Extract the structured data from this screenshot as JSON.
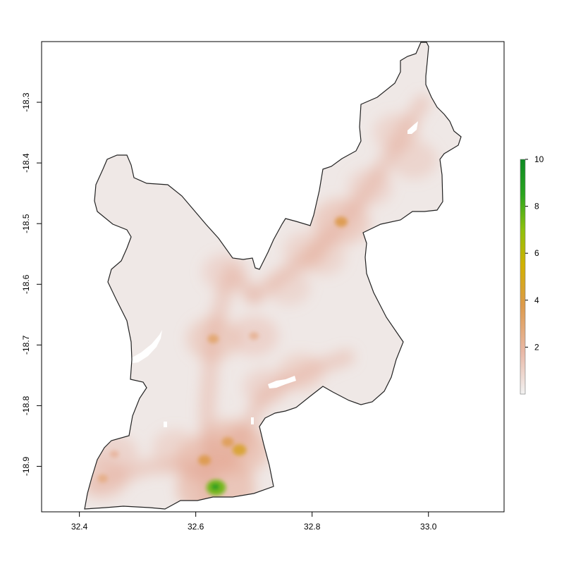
{
  "chart_data": {
    "type": "heatmap",
    "x_ticks": [
      "32.4",
      "32.6",
      "32.8",
      "33.0"
    ],
    "x_tick_values": [
      32.4,
      32.6,
      32.8,
      33.0
    ],
    "y_ticks": [
      "-18.3",
      "-18.4",
      "-18.5",
      "-18.6",
      "-18.7",
      "-18.8",
      "-18.9"
    ],
    "y_tick_values": [
      -18.3,
      -18.4,
      -18.5,
      -18.6,
      -18.7,
      -18.8,
      -18.9
    ],
    "xlim": [
      32.335,
      33.13
    ],
    "ylim": [
      -18.975,
      -18.2
    ],
    "colorbar": {
      "ticks": [
        "2",
        "4",
        "6",
        "8",
        "10"
      ],
      "tick_values": [
        2,
        4,
        6,
        8,
        10
      ],
      "range": [
        0,
        10
      ],
      "colors": [
        "#f2f2f2",
        "#e9b8a6",
        "#dd9a4a",
        "#d2b100",
        "#8ec10c",
        "#1f9a1f",
        "#0d8a23"
      ]
    },
    "hotspots": [
      {
        "lon": 32.635,
        "lat": -18.935,
        "value": 7.5
      },
      {
        "lon": 32.675,
        "lat": -18.873,
        "value": 4.5
      },
      {
        "lon": 32.655,
        "lat": -18.86,
        "value": 3.5
      },
      {
        "lon": 32.615,
        "lat": -18.89,
        "value": 3.8
      },
      {
        "lon": 32.85,
        "lat": -18.497,
        "value": 3.8
      },
      {
        "lon": 32.63,
        "lat": -18.69,
        "value": 3.0
      },
      {
        "lon": 32.7,
        "lat": -18.685,
        "value": 2.2
      },
      {
        "lon": 32.44,
        "lat": -18.92,
        "value": 2.5
      },
      {
        "lon": 32.46,
        "lat": -18.88,
        "value": 2.0
      },
      {
        "lon": 32.975,
        "lat": -18.395,
        "value": 1.8
      },
      {
        "lon": 32.945,
        "lat": -18.35,
        "value": 1.6
      },
      {
        "lon": 32.9,
        "lat": -18.44,
        "value": 1.5
      },
      {
        "lon": 32.79,
        "lat": -18.545,
        "value": 1.6
      },
      {
        "lon": 32.82,
        "lat": -18.555,
        "value": 1.4
      },
      {
        "lon": 32.76,
        "lat": -18.605,
        "value": 1.2
      },
      {
        "lon": 32.78,
        "lat": -18.745,
        "value": 1.7
      },
      {
        "lon": 32.65,
        "lat": -18.58,
        "value": 1.5
      },
      {
        "lon": 32.72,
        "lat": -18.77,
        "value": 1.5
      },
      {
        "lon": 32.565,
        "lat": -18.87,
        "value": 1.6
      }
    ],
    "background_value": 0.1,
    "no_data_value": null
  }
}
